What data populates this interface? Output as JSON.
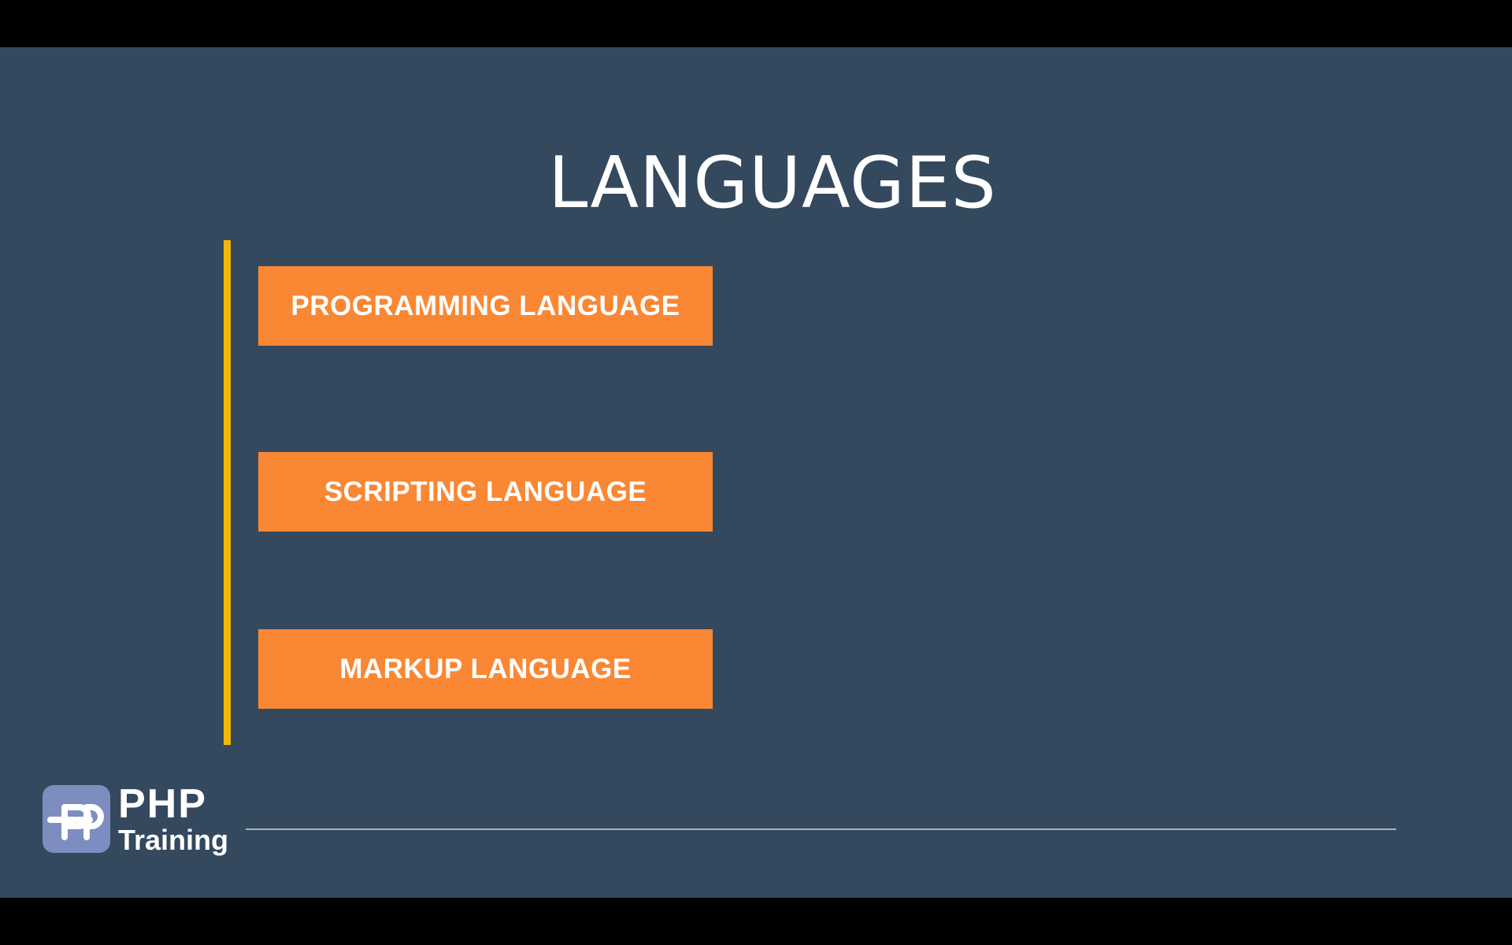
{
  "slide": {
    "title": "LANGUAGES",
    "items": [
      {
        "label": "PROGRAMMING LANGUAGE"
      },
      {
        "label": "SCRIPTING LANGUAGE"
      },
      {
        "label": "MARKUP LANGUAGE"
      }
    ]
  },
  "branding": {
    "logo_icon": "php-logo-icon",
    "name": "PHP",
    "subtitle": "Training"
  },
  "colors": {
    "background": "#34495e",
    "accent_bar": "#f2b705",
    "box": "#fa8733",
    "logo": "#7d8dc0"
  }
}
